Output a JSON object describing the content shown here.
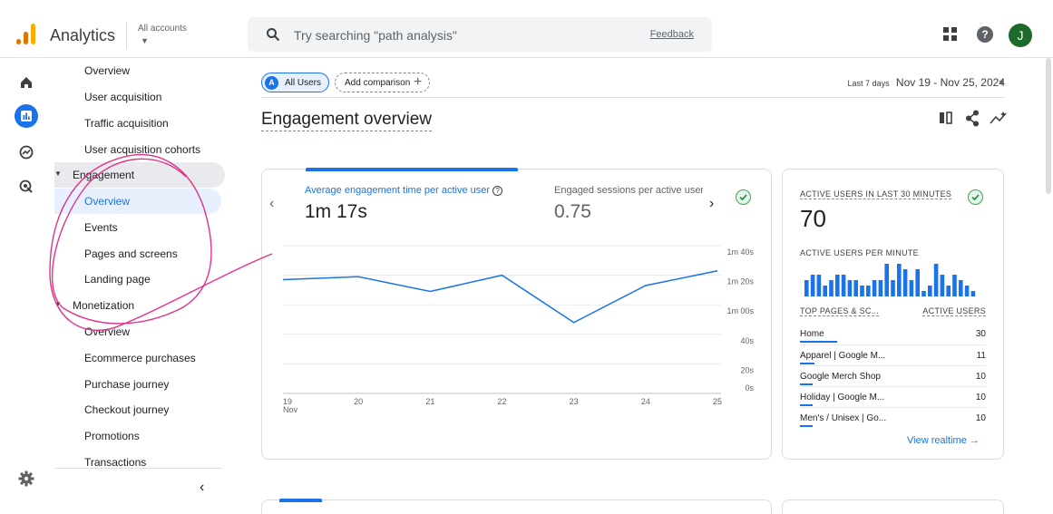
{
  "header": {
    "app_title": "Analytics",
    "accounts_label": "All accounts",
    "search_placeholder": "Try searching \"path analysis\"",
    "feedback_label": "Feedback",
    "avatar_letter": "J",
    "help_glyph": "?"
  },
  "rail": {
    "icons": [
      "home-icon",
      "reports-icon",
      "explore-icon",
      "advertising-icon",
      "settings-icon"
    ]
  },
  "sidenav": {
    "items_top": [
      "Overview",
      "User acquisition",
      "Traffic acquisition",
      "User acquisition cohorts"
    ],
    "engagement": {
      "label": "Engagement",
      "items": [
        "Overview",
        "Events",
        "Pages and screens",
        "Landing page"
      ]
    },
    "monetization": {
      "label": "Monetization",
      "items": [
        "Overview",
        "Ecommerce purchases",
        "Purchase journey",
        "Checkout journey",
        "Promotions",
        "Transactions"
      ]
    },
    "collapse_glyph": "‹"
  },
  "toolbar": {
    "all_users_badge": "A",
    "all_users_label": "All Users",
    "add_comparison_label": "Add comparison",
    "date_label": "Last 7 days",
    "date_range": "Nov 19 - Nov 25, 2024"
  },
  "page_title": "Engagement overview",
  "card_engagement": {
    "metric1_label": "Average engagement time per active user",
    "metric1_value": "1m 17s",
    "metric2_label": "Engaged sessions per active user",
    "metric2_value": "0.75"
  },
  "chart_data": {
    "type": "line",
    "x": [
      "19",
      "20",
      "21",
      "22",
      "23",
      "24",
      "25"
    ],
    "x_sublabel": "Nov",
    "series": [
      {
        "values": [
          77,
          79,
          69,
          80,
          48,
          73,
          83
        ]
      }
    ],
    "y_ticks": [
      "1m 40s",
      "1m 20s",
      "1m 00s",
      "40s",
      "20s",
      "0s"
    ],
    "y_tick_values": [
      100,
      80,
      60,
      40,
      20,
      0
    ],
    "ylim": [
      0,
      100
    ],
    "line_color": "#1a73e8",
    "grid": true
  },
  "realtime": {
    "title": "ACTIVE USERS IN LAST 30 MINUTES",
    "value": "70",
    "per_minute_label": "ACTIVE USERS PER MINUTE",
    "per_minute_values": [
      3,
      4,
      4,
      2,
      3,
      4,
      4,
      3,
      3,
      2,
      2,
      3,
      3,
      6,
      3,
      6,
      5,
      3,
      5,
      1,
      2,
      6,
      4,
      2,
      4,
      3,
      2,
      1
    ],
    "top_pages_header": "TOP PAGES & SC...",
    "active_users_header": "ACTIVE USERS",
    "rows": [
      {
        "name": "Home",
        "value": "30",
        "share": 0.2
      },
      {
        "name": "Apparel | Google M...",
        "value": "11",
        "share": 0.08
      },
      {
        "name": "Google Merch Shop",
        "value": "10",
        "share": 0.07
      },
      {
        "name": "Holiday | Google M...",
        "value": "10",
        "share": 0.07
      },
      {
        "name": "Men's / Unisex | Go...",
        "value": "10",
        "share": 0.07
      }
    ],
    "view_realtime_label": "View realtime →"
  }
}
